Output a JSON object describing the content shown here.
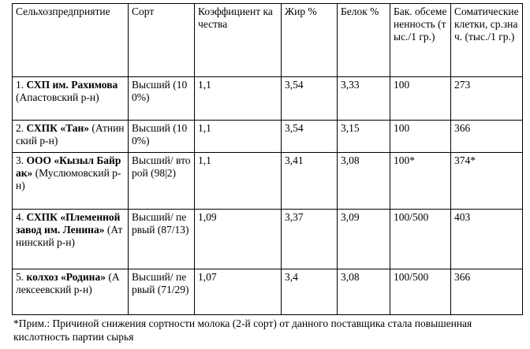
{
  "table": {
    "header": [
      "Сельхозпредприятие",
      "Сорт",
      "Коэффициент качества",
      "Жир %",
      "Белок %",
      "Бак. обсемененность (тыс./1 гр.)",
      "Соматические клетки, ср.знач. (тыс./1 гр.)"
    ],
    "rows": [
      {
        "num": "1.",
        "name": "СХП им. Рахимова",
        "district": "(Апастовский р-н)",
        "sort": "Высший (100%)",
        "cells": [
          "1,1",
          "3,54",
          "3,33",
          "100",
          "273"
        ]
      },
      {
        "num": "2.",
        "name": "СХПК «Тан»",
        "district": "(Атнинский р-н)",
        "sort": "Высший (100%)",
        "cells": [
          "1,1",
          "3,54",
          "3,15",
          "100",
          "366"
        ]
      },
      {
        "num": "3.",
        "name": "ООО «Кызыл Байрак»",
        "district": "(Муслюмовский р-н)",
        "sort": "Высший/ второй (98|2)",
        "cells": [
          "1,1",
          "3,41",
          "3,08",
          "100*",
          "374*"
        ]
      },
      {
        "num": "4.",
        "name": "СХПК «Племенной завод им. Ленина»",
        "district": "(Атнинский р-н)",
        "sort": "Высший/ первый (87/13)",
        "cells": [
          "1,09",
          "3,37",
          "3,09",
          "100/500",
          "403"
        ]
      },
      {
        "num": "5.",
        "name": "колхоз «Родина»",
        "district": "(Алексеевский р-н)",
        "sort": "Высший/ первый (71/29)",
        "cells": [
          "1,07",
          "3,4",
          "3,08",
          "100/500",
          "366"
        ]
      }
    ]
  },
  "footnote": "*Прим.: Причиной снижения сортности молока (2-й сорт) от данного поставщика стала повышенная кислотность партии сырья"
}
